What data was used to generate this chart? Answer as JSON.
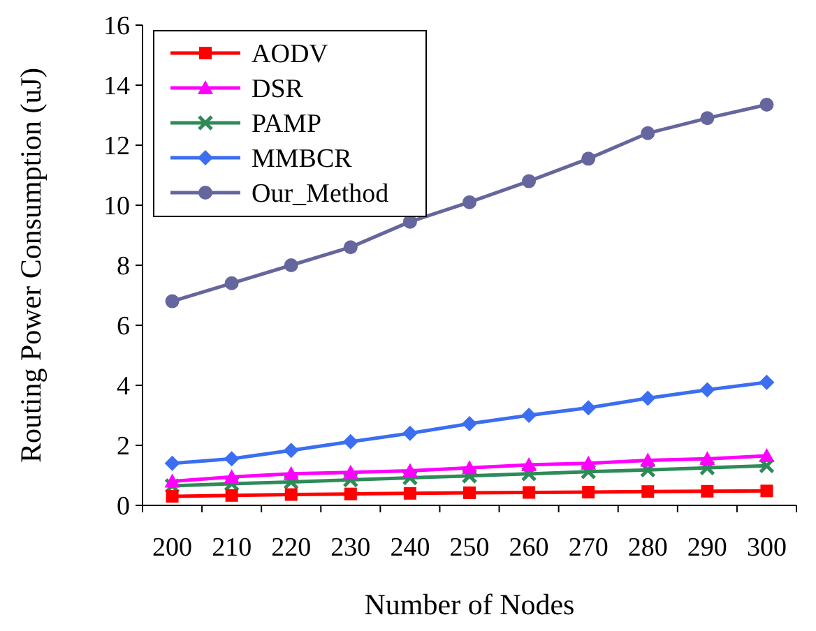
{
  "chart_data": {
    "type": "line",
    "xlabel": "Number of Nodes",
    "ylabel": "Routing Power Consumption (uJ)",
    "categories": [
      "200",
      "210",
      "220",
      "230",
      "240",
      "250",
      "260",
      "270",
      "280",
      "290",
      "300"
    ],
    "ylim": [
      0,
      16
    ],
    "yticks": [
      0,
      2,
      4,
      6,
      8,
      10,
      12,
      14,
      16
    ],
    "grid": false,
    "legend": "top left",
    "series": [
      {
        "name": "AODV",
        "color": "#ff0000",
        "marker": "square",
        "values": [
          0.3,
          0.33,
          0.36,
          0.38,
          0.4,
          0.42,
          0.43,
          0.44,
          0.46,
          0.47,
          0.48
        ]
      },
      {
        "name": "DSR",
        "color": "#ff00ff",
        "marker": "triangle",
        "values": [
          0.8,
          0.95,
          1.05,
          1.1,
          1.15,
          1.25,
          1.35,
          1.4,
          1.5,
          1.55,
          1.65
        ]
      },
      {
        "name": "PAMP",
        "color": "#2e8b57",
        "marker": "cross",
        "values": [
          0.65,
          0.72,
          0.78,
          0.85,
          0.92,
          0.98,
          1.05,
          1.12,
          1.18,
          1.25,
          1.32
        ]
      },
      {
        "name": "MMBCR",
        "color": "#3b6ef0",
        "marker": "diamond",
        "values": [
          1.4,
          1.55,
          1.83,
          2.12,
          2.4,
          2.72,
          3.0,
          3.25,
          3.57,
          3.85,
          4.1
        ]
      },
      {
        "name": "Our_Method",
        "color": "#66669e",
        "marker": "circle",
        "values": [
          6.8,
          7.4,
          8.0,
          8.6,
          9.45,
          10.1,
          10.8,
          11.55,
          12.4,
          12.9,
          13.35
        ]
      }
    ]
  }
}
